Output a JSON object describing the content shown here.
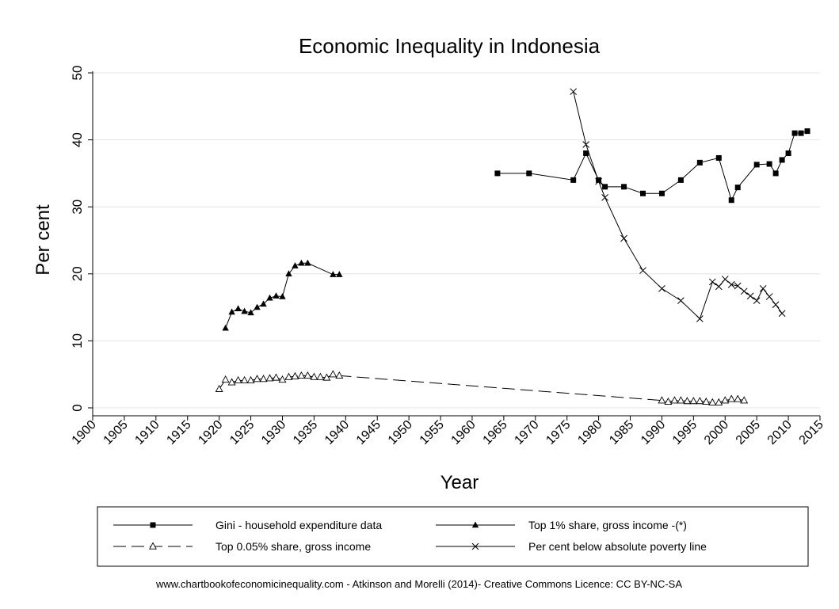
{
  "chart_data": {
    "type": "line",
    "title": "Economic Inequality in Indonesia",
    "xlabel": "Year",
    "ylabel": "Per cent",
    "xlim": [
      1900,
      2015
    ],
    "ylim": [
      0,
      50
    ],
    "xticks": [
      "1900",
      "1905",
      "1910",
      "1915",
      "1920",
      "1925",
      "1930",
      "1935",
      "1940",
      "1945",
      "1950",
      "1955",
      "1960",
      "1965",
      "1970",
      "1975",
      "1980",
      "1985",
      "1990",
      "1995",
      "2000",
      "2005",
      "2010",
      "2015"
    ],
    "yticks": [
      "0",
      "10",
      "20",
      "30",
      "40",
      "50"
    ],
    "grid": "horizontal",
    "legend_position": "bottom",
    "footer": "www.chartbookofeconomicinequality.com - Atkinson and Morelli (2014)- Creative Commons Licence: CC BY-NC-SA",
    "series": [
      {
        "name": "Gini - household expenditure data",
        "marker": "square",
        "dash": "solid",
        "x": [
          1964,
          1969,
          1976,
          1978,
          1980,
          1981,
          1984,
          1987,
          1990,
          1993,
          1996,
          1999,
          2001,
          2002,
          2005,
          2007,
          2008,
          2009,
          2010,
          2011,
          2012,
          2013
        ],
        "y": [
          35,
          35,
          34,
          38,
          34,
          33,
          33,
          32,
          32,
          34,
          36.6,
          37.3,
          31,
          32.9,
          36.3,
          36.4,
          35,
          37,
          38,
          41,
          41,
          41.3
        ]
      },
      {
        "name": "Top 1% share, gross income -(*)",
        "marker": "triangle-filled",
        "dash": "solid",
        "x": [
          1921,
          1922,
          1923,
          1924,
          1925,
          1926,
          1927,
          1928,
          1929,
          1930,
          1931,
          1932,
          1933,
          1934,
          1938,
          1939
        ],
        "y": [
          11.9,
          14.3,
          14.8,
          14.4,
          14.2,
          15,
          15.5,
          16.4,
          16.7,
          16.6,
          20,
          21.2,
          21.6,
          21.6,
          19.9,
          19.9
        ]
      },
      {
        "name": "Top 0.05% share, gross income",
        "marker": "triangle-hollow",
        "dash": "dashed",
        "x": [
          1920,
          1921,
          1922,
          1923,
          1924,
          1925,
          1926,
          1927,
          1928,
          1929,
          1930,
          1931,
          1932,
          1933,
          1934,
          1935,
          1936,
          1937,
          1938,
          1939,
          1990,
          1991,
          1992,
          1993,
          1994,
          1995,
          1996,
          1997,
          1998,
          1999,
          2000,
          2001,
          2002,
          2003
        ],
        "y": [
          2.8,
          4.2,
          3.8,
          4.1,
          4.1,
          4.1,
          4.3,
          4.3,
          4.4,
          4.5,
          4.2,
          4.6,
          4.7,
          4.8,
          4.8,
          4.6,
          4.6,
          4.5,
          5,
          4.8,
          1.1,
          0.9,
          1.1,
          1.1,
          1,
          1,
          1,
          0.9,
          0.8,
          0.8,
          1.1,
          1.3,
          1.3,
          1.1
        ]
      },
      {
        "name": "Per cent below absolute poverty line",
        "marker": "x",
        "dash": "solid",
        "x": [
          1976,
          1978,
          1980,
          1981,
          1984,
          1987,
          1990,
          1993,
          1996,
          1998,
          1999,
          2000,
          2001,
          2002,
          2003,
          2004,
          2005,
          2006,
          2007,
          2008,
          2009
        ],
        "y": [
          47.2,
          39.3,
          33.8,
          31.4,
          25.3,
          20.5,
          17.8,
          16,
          13.3,
          18.8,
          18.1,
          19.2,
          18.4,
          18.2,
          17.4,
          16.7,
          16,
          17.8,
          16.6,
          15.4,
          14.1
        ]
      }
    ]
  }
}
